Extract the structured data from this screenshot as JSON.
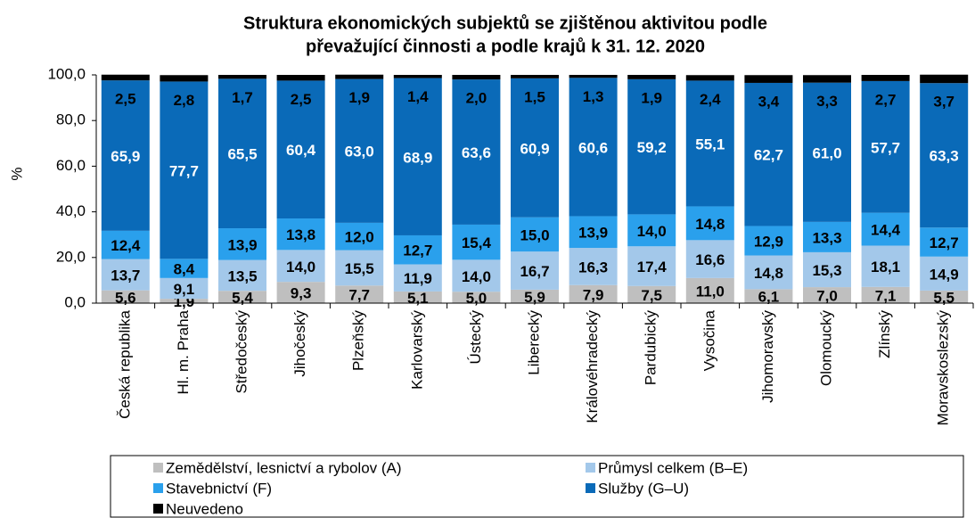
{
  "chart_data": {
    "type": "stacked-bar",
    "title": [
      "Struktura ekonomických subjektů se zjištěnou aktivitou podle",
      "převažující činnosti a podle krajů k 31. 12. 2020"
    ],
    "y_label": "%",
    "categories": [
      "Česká republika",
      "Hl. m. Praha",
      "Středočeský",
      "Jihočeský",
      "Plzeňský",
      "Karlovarský",
      "Ústecký",
      "Liberecký",
      "Královéhradecký",
      "Pardubický",
      "Vysočina",
      "Jihomoravský",
      "Olomoucký",
      "Zlínský",
      "Moravskoslezský"
    ],
    "series": [
      {
        "name": "Zemědělství, lesnictví a rybolov (A)",
        "color": "#bfbfbf",
        "values": [
          5.6,
          1.9,
          5.4,
          9.3,
          7.7,
          5.1,
          5.0,
          5.9,
          7.9,
          7.5,
          11.0,
          6.1,
          7.0,
          7.1,
          5.5
        ],
        "value_labels": [
          "5,6",
          "1,9",
          "5,4",
          "9,3",
          "7,7",
          "5,1",
          "5,0",
          "5,9",
          "7,9",
          "7,5",
          "11,0",
          "6,1",
          "7,0",
          "7,1",
          "5,5"
        ]
      },
      {
        "name": "Průmysl celkem (B–E)",
        "color": "#a3c8ea",
        "values": [
          13.7,
          9.1,
          13.5,
          14.0,
          15.5,
          11.9,
          14.0,
          16.7,
          16.3,
          17.4,
          16.6,
          14.8,
          15.3,
          18.1,
          14.9
        ],
        "value_labels": [
          "13,7",
          "9,1",
          "13,5",
          "14,0",
          "15,5",
          "11,9",
          "14,0",
          "16,7",
          "16,3",
          "17,4",
          "16,6",
          "14,8",
          "15,3",
          "18,1",
          "14,9"
        ]
      },
      {
        "name": "Stavebnictví (F)",
        "color": "#2aa0ec",
        "values": [
          12.4,
          8.4,
          13.9,
          13.8,
          12.0,
          12.7,
          15.4,
          15.0,
          13.9,
          14.0,
          14.8,
          12.9,
          13.3,
          14.4,
          12.7
        ],
        "value_labels": [
          "12,4",
          "8,4",
          "13,9",
          "13,8",
          "12,0",
          "12,7",
          "15,4",
          "15,0",
          "13,9",
          "14,0",
          "14,8",
          "12,9",
          "13,3",
          "14,4",
          "12,7"
        ]
      },
      {
        "name": "Služby (G–U)",
        "color": "#0a6ab8",
        "values": [
          65.9,
          77.7,
          65.5,
          60.4,
          63.0,
          68.9,
          63.6,
          60.9,
          60.6,
          59.2,
          55.1,
          62.7,
          61.0,
          57.7,
          63.3
        ],
        "value_labels": [
          "65,9",
          "77,7",
          "65,5",
          "60,4",
          "63,0",
          "68,9",
          "63,6",
          "60,9",
          "60,6",
          "59,2",
          "55,1",
          "62,7",
          "61,0",
          "57,7",
          "63,3"
        ]
      },
      {
        "name": "Neuvedeno",
        "color": "#000000",
        "values": [
          2.5,
          2.8,
          1.7,
          2.5,
          1.9,
          1.4,
          2.0,
          1.5,
          1.3,
          1.9,
          2.4,
          3.4,
          3.3,
          2.7,
          3.7
        ],
        "value_labels": [
          "2,5",
          "2,8",
          "1,7",
          "2,5",
          "1,9",
          "1,4",
          "2,0",
          "1,5",
          "1,3",
          "1,9",
          "2,4",
          "3,4",
          "3,3",
          "2,7",
          "3,7"
        ]
      }
    ],
    "ylim": [
      0,
      100
    ],
    "yticks": [
      {
        "value": 0,
        "label": "0,0"
      },
      {
        "value": 20,
        "label": "20,0"
      },
      {
        "value": 40,
        "label": "40,0"
      },
      {
        "value": 60,
        "label": "60,0"
      },
      {
        "value": 80,
        "label": "80,0"
      },
      {
        "value": 100,
        "label": "100,0"
      }
    ]
  }
}
